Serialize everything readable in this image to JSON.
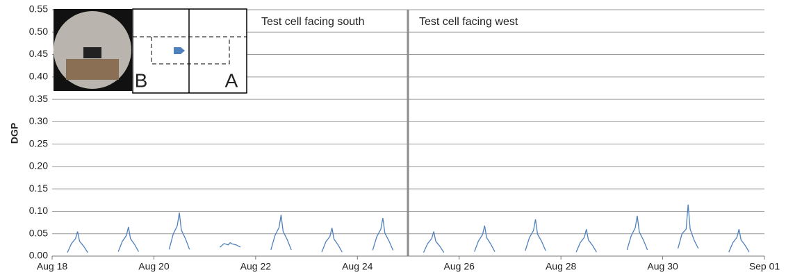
{
  "chart_data": {
    "type": "line",
    "y_label": "DGP",
    "annotations": [
      "Test cell facing south",
      "Test cell facing west"
    ],
    "inset_labels": [
      "B",
      "A"
    ],
    "xlim": [
      0,
      14
    ],
    "xticks": [
      {
        "value": 0,
        "label": "Aug 18"
      },
      {
        "value": 2,
        "label": "Aug 20"
      },
      {
        "value": 4,
        "label": "Aug 22"
      },
      {
        "value": 6,
        "label": "Aug 24"
      },
      {
        "value": 8,
        "label": "Aug 26"
      },
      {
        "value": 10,
        "label": "Aug 28"
      },
      {
        "value": 12,
        "label": "Aug 30"
      },
      {
        "value": 14,
        "label": "Sep 01"
      }
    ],
    "ylim": [
      0,
      0.55
    ],
    "yticks": [
      {
        "value": 0,
        "label": "0.00"
      },
      {
        "value": 0.05,
        "label": "0.05"
      },
      {
        "value": 0.1,
        "label": "0.10"
      },
      {
        "value": 0.15,
        "label": "0.15"
      },
      {
        "value": 0.2,
        "label": "0.20"
      },
      {
        "value": 0.25,
        "label": "0.25"
      },
      {
        "value": 0.3,
        "label": "0.30"
      },
      {
        "value": 0.35,
        "label": "0.35"
      },
      {
        "value": 0.4,
        "label": "0.40"
      },
      {
        "value": 0.45,
        "label": "0.45"
      },
      {
        "value": 0.5,
        "label": "0.50"
      },
      {
        "value": 0.55,
        "label": "0.55"
      }
    ],
    "grid": true,
    "color": "#4f81bd",
    "x": [
      0.3,
      0.38,
      0.46,
      0.5,
      0.54,
      0.62,
      0.7,
      0.85,
      1.3,
      1.38,
      1.46,
      1.5,
      1.54,
      1.62,
      1.7,
      1.85,
      2.3,
      2.38,
      2.46,
      2.5,
      2.54,
      2.62,
      2.7,
      2.85,
      3.3,
      3.38,
      3.46,
      3.5,
      3.54,
      3.62,
      3.7,
      3.85,
      4.3,
      4.38,
      4.46,
      4.5,
      4.54,
      4.62,
      4.7,
      4.85,
      5.3,
      5.38,
      5.46,
      5.5,
      5.54,
      5.62,
      5.7,
      5.85,
      6.3,
      6.38,
      6.46,
      6.5,
      6.54,
      6.62,
      6.7,
      6.85,
      7.3,
      7.38,
      7.46,
      7.5,
      7.54,
      7.62,
      7.7,
      7.85,
      8.3,
      8.38,
      8.46,
      8.5,
      8.54,
      8.62,
      8.7,
      8.85,
      9.3,
      9.38,
      9.46,
      9.5,
      9.54,
      9.62,
      9.7,
      9.85,
      10.3,
      10.38,
      10.46,
      10.5,
      10.54,
      10.62,
      10.7,
      10.85,
      11.3,
      11.38,
      11.46,
      11.5,
      11.54,
      11.62,
      11.7,
      11.85,
      12.3,
      12.38,
      12.46,
      12.5,
      12.54,
      12.62,
      12.7,
      12.85,
      13.3,
      13.38,
      13.46,
      13.5,
      13.54,
      13.62,
      13.7
    ],
    "values": [
      0.008,
      0.028,
      0.039,
      0.055,
      0.033,
      0.022,
      0.008,
      null,
      0.01,
      0.033,
      0.046,
      0.065,
      0.039,
      0.026,
      0.01,
      null,
      0.015,
      0.049,
      0.068,
      0.097,
      0.058,
      0.039,
      0.015,
      null,
      0.02,
      0.028,
      0.025,
      0.03,
      0.027,
      0.025,
      0.02,
      null,
      0.014,
      0.046,
      0.064,
      0.092,
      0.055,
      0.037,
      0.014,
      null,
      0.009,
      0.032,
      0.044,
      0.063,
      0.038,
      0.025,
      0.009,
      null,
      0.013,
      0.043,
      0.06,
      0.085,
      0.051,
      0.034,
      0.013,
      null,
      0.008,
      0.028,
      0.039,
      0.055,
      0.033,
      0.022,
      0.008,
      null,
      0.01,
      0.034,
      0.048,
      0.068,
      0.041,
      0.027,
      0.01,
      null,
      0.012,
      0.041,
      0.057,
      0.082,
      0.049,
      0.033,
      0.012,
      null,
      0.009,
      0.03,
      0.042,
      0.06,
      0.036,
      0.024,
      0.009,
      null,
      0.014,
      0.045,
      0.063,
      0.09,
      0.054,
      0.036,
      0.014,
      null,
      0.017,
      0.05,
      0.06,
      0.115,
      0.06,
      0.035,
      0.017,
      null,
      0.009,
      0.03,
      0.042,
      0.06,
      0.036,
      0.024,
      0.009
    ]
  }
}
